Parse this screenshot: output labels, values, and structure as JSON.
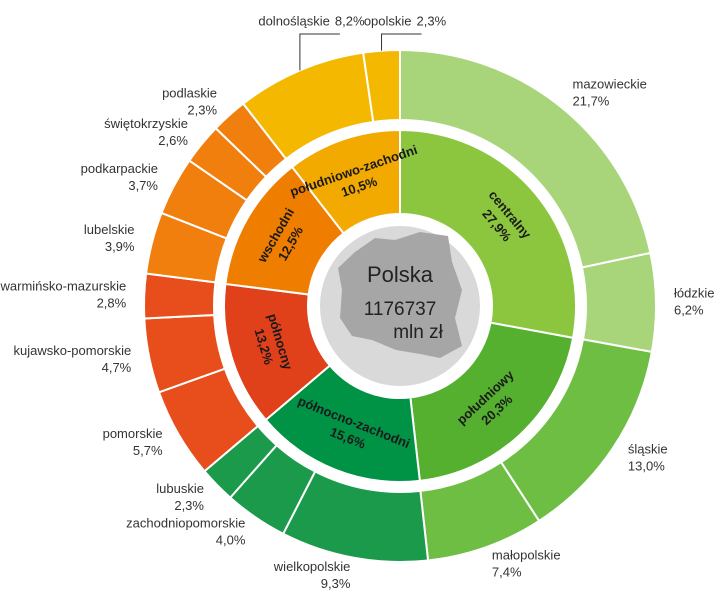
{
  "chart_data": {
    "type": "sunburst",
    "center_title": "Polska",
    "total": 1176737,
    "total_unit": "mln zł",
    "inner": {
      "categories": [
        "centralny",
        "południowy",
        "północno-zachodni",
        "północny",
        "wschodni",
        "południowo-zachodni"
      ],
      "values": [
        27.9,
        20.3,
        15.6,
        13.2,
        12.5,
        10.5
      ],
      "value_labels": [
        "27,9%",
        "20,3%",
        "15,6%",
        "13,2%",
        "12,5%",
        "10,5%"
      ],
      "colors": [
        "#8cc63f",
        "#55b030",
        "#009245",
        "#e0401a",
        "#ee7d00",
        "#f2a900"
      ]
    },
    "outer": {
      "categories": [
        "mazowieckie",
        "łódzkie",
        "śląskie",
        "małopolskie",
        "wielkopolskie",
        "zachodniopomorskie",
        "lubuskie",
        "pomorskie",
        "kujawsko-pomorskie",
        "warmińsko-mazurskie",
        "lubelskie",
        "podkarpackie",
        "świętokrzyskie",
        "podlaskie",
        "dolnośląskie",
        "opolskie"
      ],
      "values": [
        21.7,
        6.2,
        13.0,
        7.4,
        9.3,
        4.0,
        2.3,
        5.7,
        4.7,
        2.8,
        3.9,
        3.7,
        2.6,
        2.3,
        8.2,
        2.3
      ],
      "value_labels": [
        "21,7%",
        "6,2%",
        "13,0%",
        "7,4%",
        "9,3%",
        "4,0%",
        "2,3%",
        "5,7%",
        "4,7%",
        "2,8%",
        "3,9%",
        "3,7%",
        "2,6%",
        "2,3%",
        "8,2%",
        "2,3%"
      ],
      "colors": [
        "#a8d57a",
        "#a8d57a",
        "#6fbe44",
        "#6fbe44",
        "#1a9a4a",
        "#1a9a4a",
        "#1a9a4a",
        "#e84e1b",
        "#e84e1b",
        "#e84e1b",
        "#f07f0e",
        "#f07f0e",
        "#f07f0e",
        "#f07f0e",
        "#f5b800",
        "#f5b800"
      ]
    }
  }
}
